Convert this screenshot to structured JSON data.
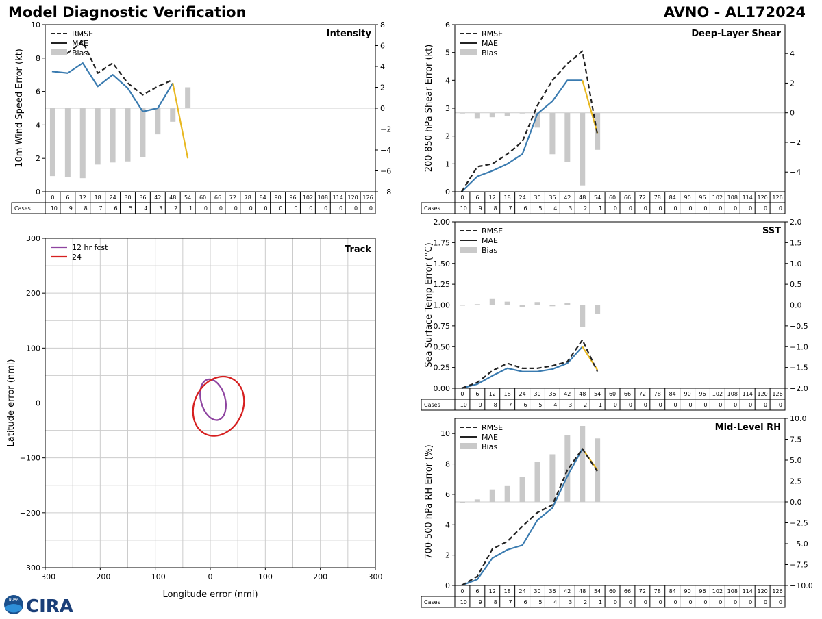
{
  "header": {
    "left_title": "Model Diagnostic Verification",
    "right_title": "AVNO - AL172024"
  },
  "legend": {
    "rmse": "RMSE",
    "mae": "MAE",
    "bias": "Bias"
  },
  "cases_label": "Cases",
  "logo": {
    "text": "CIRA",
    "seal_text": "NOAA"
  },
  "colors": {
    "rmse": "#222222",
    "mae": "#3a7bb0",
    "extrap": "#e8b820",
    "bias": "#c9c9c9",
    "grid": "#cccccc",
    "track12": "#8e44a0",
    "track24": "#d62020"
  },
  "chart_data": [
    {
      "id": "intensity",
      "type": "line",
      "title": "Intensity",
      "ylabel": "10m Wind Speed Error (kt)",
      "ylim": [
        0,
        10
      ],
      "yticks": [
        0,
        2,
        4,
        6,
        8,
        10
      ],
      "y2lim": [
        -8,
        8
      ],
      "y2ticks": [
        -8,
        -6,
        -4,
        -2,
        0,
        2,
        4,
        6,
        8
      ],
      "ylabels": [
        "0",
        "2",
        "4",
        "6",
        "8",
        "10"
      ],
      "y2labels": [
        "−8",
        "−6",
        "−4",
        "−2",
        "0",
        "2",
        "4",
        "6",
        "8"
      ],
      "leadtimes": [
        0,
        6,
        12,
        18,
        24,
        30,
        36,
        42,
        48,
        54,
        60,
        66,
        72,
        78,
        84,
        90,
        96,
        102,
        108,
        114,
        120,
        126
      ],
      "cases": [
        10,
        9,
        8,
        7,
        6,
        5,
        4,
        3,
        2,
        1,
        0,
        0,
        0,
        0,
        0,
        0,
        0,
        0,
        0,
        0,
        0,
        0
      ],
      "rmse": [
        8.2,
        8.3,
        9.0,
        7.1,
        7.7,
        6.5,
        5.8,
        6.3,
        6.7
      ],
      "mae": [
        7.2,
        7.1,
        7.7,
        6.3,
        7.0,
        6.2,
        4.8,
        5.0,
        6.5
      ],
      "extrap_end": [
        6.5,
        2.0
      ],
      "bias": [
        -6.5,
        -6.6,
        -6.7,
        -5.4,
        -5.2,
        -5.1,
        -4.7,
        -2.5,
        -1.3,
        2.0
      ]
    },
    {
      "id": "shear",
      "type": "line",
      "title": "Deep-Layer Shear",
      "ylabel": "200-850 hPa Shear Error (kt)",
      "ylim": [
        0,
        6
      ],
      "yticks": [
        0,
        1,
        2,
        3,
        4,
        5,
        6
      ],
      "y2lim": [
        -5.33,
        5.95
      ],
      "y2ticks": [
        -4,
        -2,
        0,
        2,
        4
      ],
      "ylabels": [
        "0",
        "1",
        "2",
        "3",
        "4",
        "5",
        "6"
      ],
      "y2labels": [
        "−4",
        "−2",
        "0",
        "2",
        "4"
      ],
      "leadtimes": [
        0,
        6,
        12,
        18,
        24,
        30,
        36,
        42,
        48,
        54,
        60,
        66,
        72,
        78,
        84,
        90,
        96,
        102,
        108,
        114,
        120,
        126
      ],
      "cases": [
        10,
        9,
        8,
        7,
        6,
        5,
        4,
        3,
        2,
        1,
        0,
        0,
        0,
        0,
        0,
        0,
        0,
        0,
        0,
        0,
        0,
        0
      ],
      "rmse": [
        0.0,
        0.9,
        1.0,
        1.35,
        1.8,
        3.1,
        4.0,
        4.6,
        5.05,
        2.05
      ],
      "mae": [
        0.0,
        0.55,
        0.75,
        1.0,
        1.35,
        2.8,
        3.25,
        4.0,
        4.0
      ],
      "extrap_end": [
        4.0,
        2.1
      ],
      "bias": [
        0.0,
        -0.4,
        -0.3,
        -0.2,
        0.0,
        -1.0,
        -2.8,
        -3.3,
        -4.9,
        -2.5
      ]
    },
    {
      "id": "sst",
      "type": "line",
      "title": "SST",
      "ylabel": "Sea Surface Temp Error (°C)",
      "ylim": [
        0,
        2
      ],
      "yticks": [
        0,
        0.25,
        0.5,
        0.75,
        1.0,
        1.25,
        1.5,
        1.75,
        2.0
      ],
      "y2lim": [
        -2,
        2
      ],
      "y2ticks": [
        -2,
        -1.5,
        -1,
        -0.5,
        0,
        0.5,
        1,
        1.5,
        2
      ],
      "ylabels": [
        "0.00",
        "0.25",
        "0.50",
        "0.75",
        "1.00",
        "1.25",
        "1.50",
        "1.75",
        "2.00"
      ],
      "y2labels": [
        "−2.0",
        "−1.5",
        "−1.0",
        "−0.5",
        "0.0",
        "0.5",
        "1.0",
        "1.5",
        "2.0"
      ],
      "leadtimes": [
        0,
        6,
        12,
        18,
        24,
        30,
        36,
        42,
        48,
        54,
        60,
        66,
        72,
        78,
        84,
        90,
        96,
        102,
        108,
        114,
        120,
        126
      ],
      "cases": [
        10,
        9,
        8,
        7,
        6,
        5,
        4,
        3,
        2,
        1,
        0,
        0,
        0,
        0,
        0,
        0,
        0,
        0,
        0,
        0,
        0,
        0
      ],
      "rmse": [
        0.0,
        0.07,
        0.21,
        0.3,
        0.24,
        0.24,
        0.27,
        0.32,
        0.58,
        0.2
      ],
      "mae": [
        0.0,
        0.05,
        0.15,
        0.24,
        0.2,
        0.2,
        0.23,
        0.3,
        0.5
      ],
      "extrap_end": [
        0.5,
        0.22
      ],
      "bias": [
        0.0,
        0.02,
        0.16,
        0.08,
        -0.05,
        0.07,
        -0.03,
        0.05,
        -0.52,
        -0.22
      ]
    },
    {
      "id": "rh",
      "type": "line",
      "title": "Mid-Level RH",
      "ylabel": "700-500 hPa RH Error (%)",
      "ylim": [
        0,
        11
      ],
      "yticks": [
        0,
        2,
        4,
        6,
        8,
        10
      ],
      "y2lim": [
        -10,
        10
      ],
      "y2ticks": [
        -10,
        -7.5,
        -5,
        -2.5,
        0,
        2.5,
        5,
        7.5,
        10
      ],
      "ylabels": [
        "0",
        "2",
        "4",
        "6",
        "8",
        "10"
      ],
      "y2labels": [
        "−10.0",
        "−7.5",
        "−5.0",
        "−2.5",
        "0.0",
        "2.5",
        "5.0",
        "7.5",
        "10.0"
      ],
      "leadtimes": [
        0,
        6,
        12,
        18,
        24,
        30,
        36,
        42,
        48,
        54,
        60,
        66,
        72,
        78,
        84,
        90,
        96,
        102,
        108,
        114,
        120,
        126
      ],
      "cases": [
        10,
        9,
        8,
        7,
        6,
        5,
        4,
        3,
        2,
        1,
        0,
        0,
        0,
        0,
        0,
        0,
        0,
        0,
        0,
        0,
        0,
        0
      ],
      "rmse": [
        0.0,
        0.6,
        2.4,
        2.9,
        3.9,
        4.8,
        5.3,
        7.6,
        9.0,
        7.5
      ],
      "mae": [
        0.0,
        0.4,
        1.8,
        2.35,
        2.65,
        4.3,
        5.1,
        7.2,
        9.0
      ],
      "extrap_end": [
        9.0,
        7.6
      ],
      "bias": [
        0.0,
        0.3,
        1.5,
        1.9,
        3.0,
        4.8,
        5.7,
        8.0,
        9.1,
        7.6
      ]
    },
    {
      "id": "track",
      "type": "line",
      "title": "Track",
      "xlabel": "Longitude error (nmi)",
      "ylabel": "Latitude error (nmi)",
      "xlim": [
        -300,
        300
      ],
      "ylim": [
        -300,
        300
      ],
      "xticks": [
        -300,
        -200,
        -100,
        0,
        100,
        200,
        300
      ],
      "yticks": [
        -300,
        -200,
        -100,
        0,
        100,
        200,
        300
      ],
      "xlabels": [
        "−300",
        "−200",
        "−100",
        "0",
        "100",
        "200",
        "300"
      ],
      "ylabels": [
        "−300",
        "−200",
        "−100",
        "0",
        "100",
        "200",
        "300"
      ],
      "ellipses": [
        {
          "name": "12 hr fcst",
          "cx": 5,
          "cy": 6,
          "rx": 22,
          "ry": 38,
          "rot": -15
        },
        {
          "name": "24",
          "cx": 15,
          "cy": -6,
          "rx": 44,
          "ry": 56,
          "rot": 25
        }
      ]
    }
  ]
}
